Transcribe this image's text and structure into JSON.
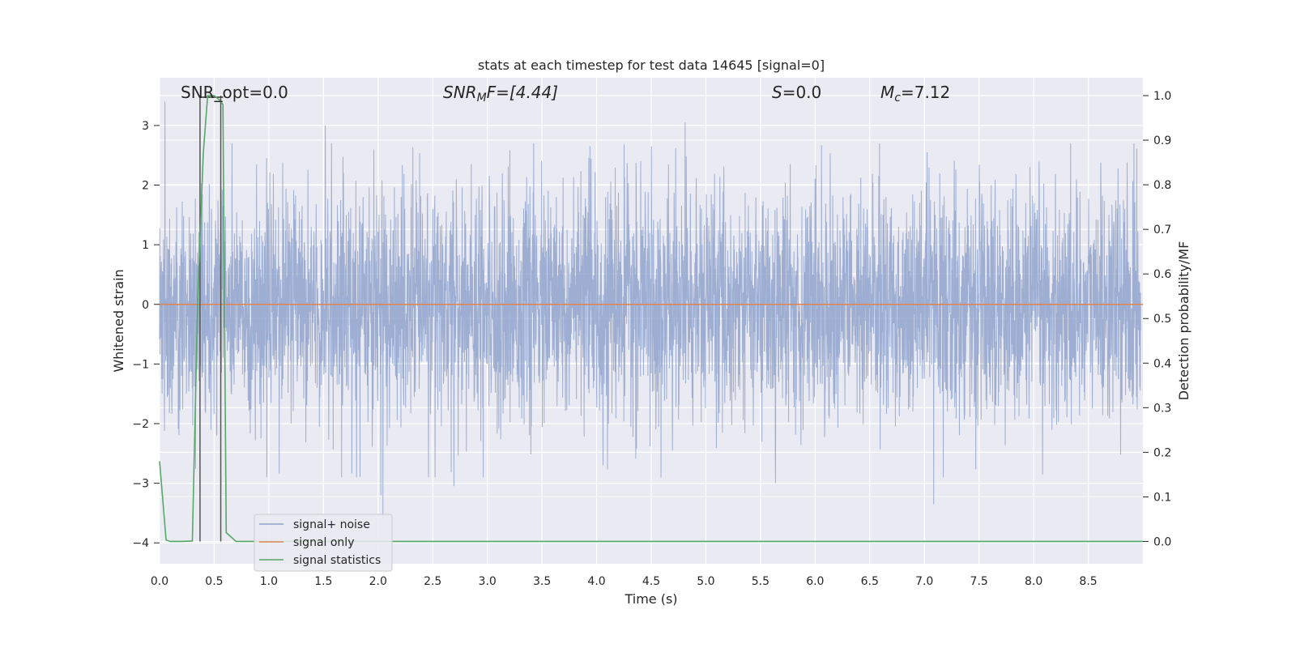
{
  "chart_data": {
    "type": "line",
    "title": "stats at each timestep for test data 14645 [signal=0]",
    "xlabel": "Time (s)",
    "ylabel": "Whitened strain",
    "y2label": "Detection probability/MF",
    "xlim": [
      0.0,
      9.0
    ],
    "ylim": [
      -4.35,
      3.8
    ],
    "y2lim": [
      -0.05,
      1.04
    ],
    "xticks": [
      "0.0",
      "0.5",
      "1.0",
      "1.5",
      "2.0",
      "2.5",
      "3.0",
      "3.5",
      "4.0",
      "4.5",
      "5.0",
      "5.5",
      "6.0",
      "6.5",
      "7.0",
      "7.5",
      "8.0",
      "8.5"
    ],
    "yticks": [
      "3",
      "2",
      "1",
      "0",
      "−1",
      "−2",
      "−3",
      "−4"
    ],
    "y2ticks": [
      "1.0",
      "0.9",
      "0.8",
      "0.7",
      "0.6",
      "0.5",
      "0.4",
      "0.3",
      "0.2",
      "0.1",
      "0.0"
    ],
    "grid": true,
    "legend_placement": "lower-left",
    "annotations": {
      "snr_opt": "SNR_opt=0.0",
      "snr_mf_main": "SNR",
      "snr_mf_sub": "M",
      "snr_mf_rest": "F=[4.44]",
      "s_main": "S",
      "s_rest": "=0.0",
      "mc_main": "M",
      "mc_sub": "c",
      "mc_rest": "=7.12"
    },
    "series": [
      {
        "name": "signal+ noise",
        "color": "#8fa3cc",
        "description_of_values": "whitened noise time series, approx. gaussian, range -3.4 to 3.4",
        "peaks": [
          [
            0.05,
            3.4
          ],
          [
            1.52,
            3.0
          ],
          [
            4.82,
            3.05
          ],
          [
            7.1,
            2.75
          ],
          [
            2.03,
            -3.2
          ],
          [
            2.05,
            -3.6
          ],
          [
            7.1,
            -3.35
          ],
          [
            2.7,
            -3.05
          ],
          [
            5.65,
            -3.0
          ],
          [
            4.6,
            -2.9
          ]
        ]
      },
      {
        "name": "signal only",
        "color": "#dd8452",
        "x": [
          0.0,
          9.0
        ],
        "y": [
          0.0,
          0.0
        ]
      },
      {
        "name": "signal statistics",
        "color": "#55a868",
        "x": [
          0.0,
          0.06,
          0.1,
          0.2,
          0.3,
          0.35,
          0.4,
          0.44,
          0.5,
          0.55,
          0.58,
          0.61,
          0.7,
          1.0,
          9.0
        ],
        "y2": [
          0.18,
          0.003,
          0.0,
          0.0,
          0.001,
          0.55,
          0.87,
          1.0,
          1.0,
          0.99,
          0.98,
          0.02,
          0.0,
          0.0,
          0.0
        ]
      }
    ],
    "markers": [
      0.37,
      0.56
    ]
  }
}
